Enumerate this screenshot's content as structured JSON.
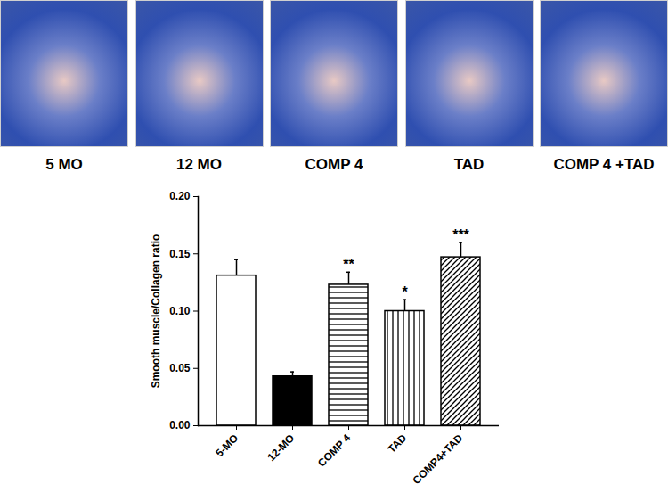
{
  "chart_data": {
    "type": "bar",
    "panel_labels": [
      "5 MO",
      "12 MO",
      "COMP 4",
      "TAD",
      "COMP 4 +TAD"
    ],
    "y_label": "Smooth muscle/Collagen ratio",
    "categories": [
      "5-MO",
      "12-MO",
      "COMP 4",
      "TAD",
      "COMP4+TAD"
    ],
    "values": [
      0.131,
      0.043,
      0.123,
      0.1,
      0.147
    ],
    "errors": [
      0.014,
      0.004,
      0.011,
      0.01,
      0.013
    ],
    "annotations": [
      null,
      null,
      "**",
      "*",
      "***"
    ],
    "colors": [
      "#ffffff",
      "#000000",
      "#ffffff",
      "#ffffff",
      "#ffffff"
    ],
    "ylim": [
      0,
      0.2
    ],
    "yticks": [
      {
        "value": 0,
        "label": "0.00"
      },
      {
        "value": 0.05,
        "label": "0.05"
      },
      {
        "value": 0.1,
        "label": "0.10"
      },
      {
        "value": 0.15,
        "label": "0.15"
      },
      {
        "value": 0.2,
        "label": "0.20"
      }
    ],
    "grid": false
  }
}
